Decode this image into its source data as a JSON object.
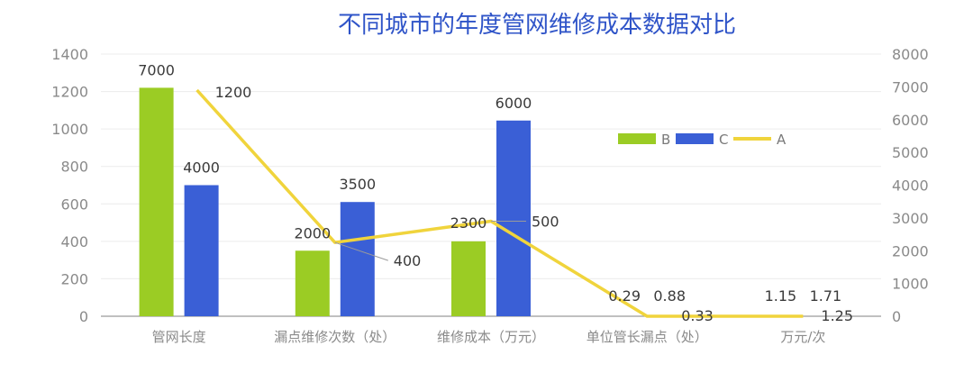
{
  "chart_data": {
    "type": "bar",
    "title": "不同城市的年度管网维修成本数据对比",
    "categories": [
      "管网长度",
      "漏点维修次数（处）",
      "维修成本（万元）",
      "单位管长漏点（处）",
      "万元/次"
    ],
    "series": [
      {
        "name": "B",
        "type": "bar",
        "axis": "left",
        "values": [
          1220,
          350,
          400,
          null,
          null
        ],
        "labels": [
          "7000",
          "2000",
          "2300",
          "0.29",
          "1.15"
        ],
        "color": "#9bcc24"
      },
      {
        "name": "C",
        "type": "bar",
        "axis": "left",
        "values": [
          700,
          610,
          1045,
          null,
          null
        ],
        "labels": [
          "4000",
          "3500",
          "6000",
          "0.88",
          "1.71"
        ],
        "color": "#3a5fd6"
      },
      {
        "name": "A",
        "type": "line",
        "axis": "right",
        "values": [
          6900,
          2250,
          2900,
          0,
          0
        ],
        "labels": [
          "1200",
          "400",
          "500",
          "0.33",
          "1.25"
        ],
        "color": "#f0d43c"
      }
    ],
    "y_left": {
      "min": 0,
      "max": 1400,
      "ticks": [
        "0",
        "200",
        "400",
        "600",
        "800",
        "1000",
        "1200",
        "1400"
      ]
    },
    "y_right": {
      "min": 0,
      "max": 8000,
      "ticks": [
        "0",
        "1000",
        "2000",
        "3000",
        "4000",
        "5000",
        "6000",
        "7000",
        "8000"
      ]
    },
    "grid": true,
    "legend_position": "top-right",
    "legend": [
      "B",
      "C",
      "A"
    ]
  }
}
